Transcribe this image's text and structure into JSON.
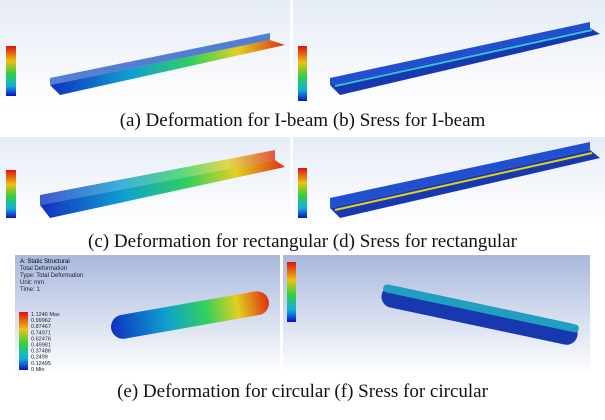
{
  "captions": [
    "(a) Deformation for I-beam (b) Sress for I-beam",
    "(c) Deformation for rectangular (d) Sress for rectangular",
    "(e) Deformation for circular (f) Sress for circular"
  ],
  "panel_e": {
    "header": [
      "A: Static Structural",
      "Total Deformation",
      "Type: Total Deformation",
      "Unit: mm",
      "Time: 1"
    ],
    "legend": [
      "1.1246 Max",
      "0.99962",
      "0.87467",
      "0.74971",
      "0.62476",
      "0.49981",
      "0.37486",
      "0.2499",
      "0.12495",
      "0 Min"
    ]
  }
}
